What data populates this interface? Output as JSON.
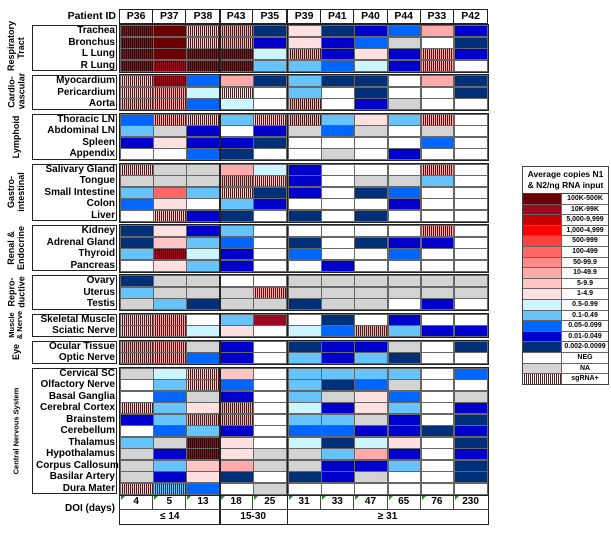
{
  "chart_data": {
    "type": "heatmap",
    "title": "",
    "corner_label": "Patient ID",
    "columns": [
      "P36",
      "P37",
      "P38",
      "P43",
      "P35",
      "P39",
      "P41",
      "P40",
      "P44",
      "P33",
      "P42"
    ],
    "column_groups": [
      {
        "label": "≤ 14",
        "columns": [
          "P36",
          "P37",
          "P38"
        ]
      },
      {
        "label": "15-30",
        "columns": [
          "P43",
          "P35"
        ]
      },
      {
        "label": "≥ 31",
        "columns": [
          "P39",
          "P41",
          "P40",
          "P44",
          "P33",
          "P42"
        ]
      }
    ],
    "doi_label": "DOI (days)",
    "doi_values": [
      "4",
      "5",
      "13",
      "18",
      "25",
      "31",
      "33",
      "47",
      "65",
      "76",
      "230"
    ],
    "legend": {
      "title": "Average copies N1 & N2/ng RNA input",
      "items": [
        {
          "key": "r1",
          "label": "100K-500K",
          "color": "#6b0000"
        },
        {
          "key": "r2",
          "label": "10K-99K",
          "color": "#9e0a22"
        },
        {
          "key": "r3",
          "label": "5,000-9,999",
          "color": "#c80000"
        },
        {
          "key": "r4",
          "label": "1,000-4,999",
          "color": "#ff0000"
        },
        {
          "key": "r5",
          "label": "500-999",
          "color": "#ff4040"
        },
        {
          "key": "r6",
          "label": "100-499",
          "color": "#ff6666"
        },
        {
          "key": "r7",
          "label": "50-99.9",
          "color": "#ff8a8a"
        },
        {
          "key": "r8",
          "label": "10-49.9",
          "color": "#ffaaaa"
        },
        {
          "key": "r9",
          "label": "5-9.9",
          "color": "#ffc4c4"
        },
        {
          "key": "r10",
          "label": "1-4.9",
          "color": "#ffe0e0"
        },
        {
          "key": "b1",
          "label": "0.5-0.99",
          "color": "#ccf5ff"
        },
        {
          "key": "b2",
          "label": "0.1-0.49",
          "color": "#66c4fa"
        },
        {
          "key": "b3",
          "label": "0.05-0.099",
          "color": "#0066ff"
        },
        {
          "key": "b4",
          "label": "0.01-0.049",
          "color": "#0000cc"
        },
        {
          "key": "b5",
          "label": "0.002-0.0099",
          "color": "#003078"
        },
        {
          "key": "neg",
          "label": "NEG",
          "color": "#ffffff"
        },
        {
          "key": "na",
          "label": "NA",
          "color": "#d3d3d3"
        },
        {
          "key": "sg",
          "label": "sgRNA+",
          "color": "striped"
        }
      ]
    },
    "groups": [
      {
        "label": "Respiratory Tract",
        "label_lines": [
          "Respiratory",
          "Tract"
        ],
        "rows": [
          {
            "tissue": "Trachea",
            "cells": [
              "r2*",
              "r1",
              "r9*",
              "r8*",
              "b5",
              "r10",
              "b5",
              "b4",
              "b3",
              "r8",
              "b4"
            ]
          },
          {
            "tissue": "Bronchus",
            "cells": [
              "r2*",
              "r1",
              "r9*",
              "r8*",
              "b4",
              "r10",
              "b4",
              "b3",
              "na",
              "neg",
              "b5"
            ]
          },
          {
            "tissue": "L Lung",
            "cells": [
              "r2*",
              "r1",
              "r2*",
              "r2*",
              "b1",
              "r8*",
              "b4",
              "r10",
              "b4",
              "r8*",
              "b4"
            ]
          },
          {
            "tissue": "R Lung",
            "cells": [
              "r2*",
              "r2*",
              "r2*",
              "r2*",
              "b2",
              "b2",
              "b3",
              "b1",
              "b4",
              "r8*",
              "neg"
            ]
          }
        ]
      },
      {
        "label": "Cardiovascular",
        "label_lines": [
          "Cardio-",
          "vascular"
        ],
        "rows": [
          {
            "tissue": "Myocardium",
            "cells": [
              "r9*",
              "r2*",
              "b3",
              "r8",
              "b5",
              "b2",
              "b5",
              "b5",
              "neg",
              "r8",
              "b5"
            ]
          },
          {
            "tissue": "Pericardium",
            "cells": [
              "r9*",
              "r8*",
              "b1",
              "b1*",
              "neg",
              "b2",
              "neg",
              "b5",
              "neg",
              "neg",
              "b5"
            ]
          },
          {
            "tissue": "Aorta",
            "cells": [
              "r8*",
              "r8*",
              "b3",
              "b1",
              "neg",
              "r8*",
              "neg",
              "b4",
              "na",
              "neg",
              "neg"
            ]
          }
        ]
      },
      {
        "label": "Lymphoid",
        "label_lines": [
          "Lymphoid"
        ],
        "rows": [
          {
            "tissue": "Thoracic LN",
            "cells": [
              "b3",
              "r8*",
              "r9*",
              "b2",
              "r9*",
              "r8*",
              "b2",
              "r10",
              "b2",
              "r8*",
              "neg"
            ]
          },
          {
            "tissue": "Abdominal LN",
            "cells": [
              "b2",
              "na",
              "b4",
              "neg",
              "b4",
              "na",
              "b3",
              "na",
              "neg",
              "na",
              "neg"
            ]
          },
          {
            "tissue": "Spleen",
            "cells": [
              "b4",
              "r10",
              "b4",
              "b4",
              "b5",
              "neg",
              "neg",
              "neg",
              "neg",
              "b3",
              "neg"
            ]
          },
          {
            "tissue": "Appendix",
            "cells": [
              "neg",
              "neg",
              "b3",
              "b5",
              "neg",
              "neg",
              "na",
              "neg",
              "b4",
              "neg",
              "neg"
            ]
          }
        ]
      },
      {
        "label": "Gastrointestinal",
        "label_lines": [
          "Gastro-",
          "intestinal"
        ],
        "rows": [
          {
            "tissue": "Salivary Gland",
            "cells": [
              "r9*",
              "na",
              "na",
              "r8",
              "b1",
              "b4",
              "neg",
              "neg",
              "neg",
              "r8*",
              "neg"
            ]
          },
          {
            "tissue": "Tongue",
            "cells": [
              "na",
              "na",
              "na",
              "r8*",
              "r9*",
              "b4",
              "neg",
              "na",
              "na",
              "b2",
              "neg"
            ]
          },
          {
            "tissue": "Small Intestine",
            "cells": [
              "b2",
              "r6",
              "b2",
              "r9*",
              "b5",
              "b4",
              "neg",
              "b5",
              "b3",
              "neg",
              "neg"
            ]
          },
          {
            "tissue": "Colon",
            "cells": [
              "b3",
              "r10",
              "neg",
              "b2",
              "b4",
              "neg",
              "neg",
              "neg",
              "b4",
              "neg",
              "neg"
            ]
          },
          {
            "tissue": "Liver",
            "cells": [
              "neg",
              "r9*",
              "b4",
              "b5",
              "neg",
              "b5",
              "neg",
              "b5",
              "neg",
              "neg",
              "neg"
            ]
          }
        ]
      },
      {
        "label": "Renal & Endocrine",
        "label_lines": [
          "Renal &",
          "Endocrine"
        ],
        "rows": [
          {
            "tissue": "Kidney",
            "cells": [
              "b5",
              "r10",
              "b4",
              "b2",
              "neg",
              "neg",
              "neg",
              "neg",
              "neg",
              "r8*",
              "neg"
            ]
          },
          {
            "tissue": "Adrenal Gland",
            "cells": [
              "b5",
              "r9",
              "b2",
              "b3",
              "neg",
              "b5",
              "neg",
              "b5",
              "b4",
              "b4",
              "neg"
            ]
          },
          {
            "tissue": "Thyroid",
            "cells": [
              "b2",
              "r2*",
              "b1",
              "b4",
              "neg",
              "b3",
              "neg",
              "neg",
              "b3",
              "neg",
              "neg"
            ]
          },
          {
            "tissue": "Pancreas",
            "cells": [
              "neg",
              "r10",
              "b2",
              "b4",
              "neg",
              "neg",
              "b4",
              "neg",
              "neg",
              "neg",
              "neg"
            ]
          }
        ]
      },
      {
        "label": "Reproductive",
        "label_lines": [
          "Repro-",
          "ductive"
        ],
        "rows": [
          {
            "tissue": "Ovary",
            "cells": [
              "b5",
              "na",
              "na",
              "neg",
              "neg",
              "na",
              "na",
              "na",
              "na",
              "na",
              "na"
            ]
          },
          {
            "tissue": "Uterus",
            "cells": [
              "b2",
              "na",
              "na",
              "na",
              "r8*",
              "na",
              "na",
              "na",
              "na",
              "na",
              "na"
            ]
          },
          {
            "tissue": "Testis",
            "cells": [
              "na",
              "b2",
              "b5",
              "na",
              "na",
              "b5",
              "na",
              "na",
              "neg",
              "b4",
              "neg"
            ]
          }
        ]
      },
      {
        "label": "Muscle & Nerve",
        "label_lines": [
          "Muscle",
          "& Nerve"
        ],
        "rows": [
          {
            "tissue": "Skeletal Muscle",
            "cells": [
              "r9*",
              "r8*",
              "neg",
              "b2",
              "r2",
              "neg",
              "b5",
              "neg",
              "b4",
              "neg",
              "neg"
            ]
          },
          {
            "tissue": "Sciatic Nerve",
            "cells": [
              "r9*",
              "r8*",
              "b1",
              "r10",
              "neg",
              "b1",
              "b3",
              "r8*",
              "b2",
              "b4",
              "b4"
            ]
          }
        ]
      },
      {
        "label": "Eye",
        "label_lines": [
          "Eye"
        ],
        "rows": [
          {
            "tissue": "Ocular Tissue",
            "cells": [
              "r8*",
              "r8*",
              "na",
              "b4",
              "neg",
              "b5",
              "b4",
              "b4",
              "na",
              "neg",
              "b5"
            ]
          },
          {
            "tissue": "Optic Nerve",
            "cells": [
              "r8*",
              "r8*",
              "b3",
              "b4",
              "neg",
              "b2",
              "b4",
              "b2",
              "b5",
              "neg",
              "neg"
            ]
          }
        ]
      },
      {
        "label": "Central Nervous System",
        "label_lines": [
          "Central Nervous System"
        ],
        "rows": [
          {
            "tissue": "Cervical SC",
            "cells": [
              "na",
              "b1",
              "r9*",
              "r9",
              "neg",
              "b2",
              "b2",
              "b2",
              "b2",
              "neg",
              "b3"
            ]
          },
          {
            "tissue": "Olfactory Nerve",
            "cells": [
              "neg",
              "b2",
              "r9*",
              "b3",
              "neg",
              "b2",
              "b5",
              "b3",
              "na",
              "neg",
              "neg"
            ]
          },
          {
            "tissue": "Basal Ganglia",
            "cells": [
              "neg",
              "b3",
              "na",
              "b4",
              "neg",
              "b2",
              "na",
              "r10",
              "b3",
              "neg",
              "na"
            ]
          },
          {
            "tissue": "Cerebral Cortex",
            "cells": [
              "r9*",
              "b2",
              "r10",
              "r8*",
              "neg",
              "b1",
              "b4",
              "r10",
              "b2",
              "neg",
              "b4"
            ]
          },
          {
            "tissue": "Brainstem",
            "cells": [
              "b4",
              "b2",
              "r8*",
              "r8*",
              "neg",
              "b2",
              "b2",
              "na",
              "b4",
              "neg",
              "b5"
            ]
          },
          {
            "tissue": "Cerebellum",
            "cells": [
              "neg",
              "b3",
              "b2",
              "b4",
              "neg",
              "b3",
              "b3",
              "b4",
              "b4",
              "b5",
              "b4"
            ]
          },
          {
            "tissue": "Thalamus",
            "cells": [
              "b2",
              "na",
              "r2*",
              "r10",
              "neg",
              "b1",
              "b5",
              "b1",
              "r10",
              "neg",
              "b5"
            ]
          },
          {
            "tissue": "Hypothalamus",
            "cells": [
              "na",
              "b4",
              "r2*",
              "r10",
              "na",
              "na",
              "b2",
              "r8",
              "b4",
              "neg",
              "b4"
            ]
          },
          {
            "tissue": "Corpus Callosum",
            "cells": [
              "na",
              "b2",
              "r9",
              "r8",
              "na",
              "na",
              "b4",
              "b4",
              "b2",
              "neg",
              "b5"
            ]
          },
          {
            "tissue": "Basilar Artery",
            "cells": [
              "na",
              "b4",
              "r10",
              "b5",
              "neg",
              "b5",
              "b4",
              "na",
              "neg",
              "neg",
              "b5"
            ]
          },
          {
            "tissue": "Dura Mater",
            "cells": [
              "r9*",
              "b2*",
              "b3",
              "neg",
              "na",
              "neg",
              "neg",
              "neg",
              "neg",
              "neg",
              "neg"
            ]
          }
        ]
      }
    ]
  }
}
